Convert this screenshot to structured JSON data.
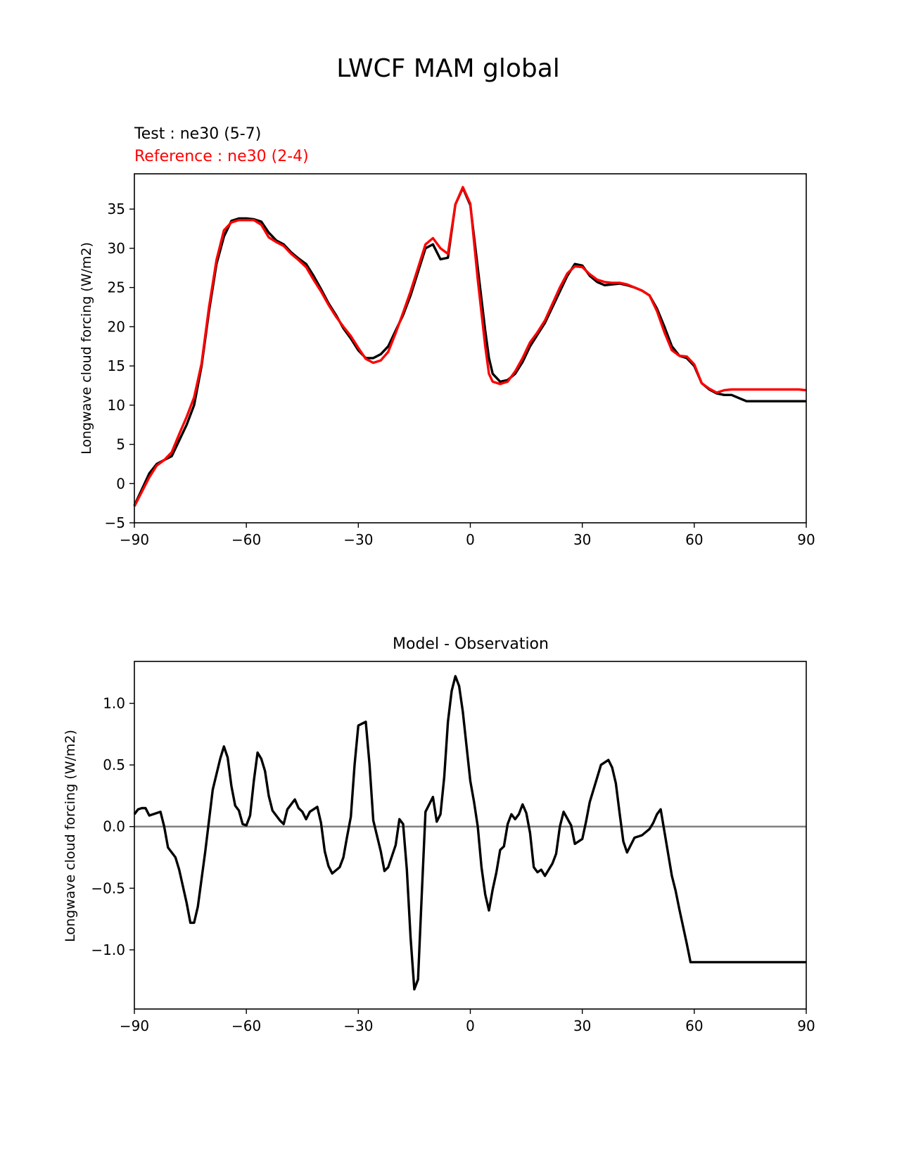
{
  "figure": {
    "title": "LWCF MAM global"
  },
  "colors": {
    "test": "#000000",
    "reference": "#ff0000",
    "zero_line": "#808080"
  },
  "chart_data": [
    {
      "type": "line",
      "test_label": "Test : ne30 (5-7)",
      "reference_label": "Reference : ne30 (2-4)",
      "xlabel": "",
      "ylabel": "Longwave cloud forcing (W/m2)",
      "xlim": [
        -90,
        90
      ],
      "ylim": [
        -5,
        39.5
      ],
      "xticks": [
        -90,
        -60,
        -30,
        0,
        30,
        60,
        90
      ],
      "yticks": [
        -5,
        0,
        5,
        10,
        15,
        20,
        25,
        30,
        35
      ],
      "x": [
        -90,
        -86,
        -84,
        -82,
        -80,
        -78,
        -76,
        -74,
        -72,
        -70,
        -68,
        -66,
        -64,
        -62,
        -60,
        -58,
        -56,
        -54,
        -52,
        -50,
        -48,
        -46,
        -44,
        -42,
        -40,
        -38,
        -36,
        -34,
        -32,
        -30,
        -28,
        -26,
        -24,
        -22,
        -20,
        -18,
        -16,
        -14,
        -12,
        -10,
        -8,
        -6,
        -4,
        -2,
        0,
        2,
        4,
        5,
        6,
        8,
        10,
        12,
        14,
        16,
        18,
        20,
        22,
        24,
        26,
        28,
        30,
        32,
        34,
        36,
        38,
        40,
        42,
        44,
        46,
        48,
        50,
        52,
        54,
        56,
        58,
        60,
        62,
        64,
        66,
        68,
        70,
        72,
        74,
        76,
        78,
        80,
        82,
        84,
        86,
        88,
        90
      ],
      "series": [
        {
          "name": "Test : ne30 (5-7)",
          "values": [
            -2.8,
            1.3,
            2.5,
            3.0,
            3.5,
            5.5,
            7.5,
            10.0,
            15.0,
            22.0,
            28.0,
            31.5,
            33.5,
            33.8,
            33.8,
            33.7,
            33.4,
            32.0,
            31.0,
            30.5,
            29.5,
            28.7,
            28.0,
            26.5,
            24.8,
            23.0,
            21.5,
            19.8,
            18.5,
            17.0,
            16.0,
            16.0,
            16.5,
            17.5,
            19.5,
            21.5,
            24.0,
            27.0,
            30.0,
            30.5,
            28.6,
            28.8,
            35.6,
            37.7,
            35.5,
            27.5,
            19.5,
            16.0,
            14.0,
            13.0,
            13.2,
            14.0,
            15.5,
            17.5,
            19.0,
            20.5,
            22.5,
            24.5,
            26.5,
            28.0,
            27.8,
            26.5,
            25.7,
            25.3,
            25.4,
            25.5,
            25.3,
            25.0,
            24.6,
            24.0,
            22.3,
            20.0,
            17.5,
            16.3,
            16.0,
            15.0,
            12.8,
            12.0,
            11.5,
            11.3,
            11.3,
            10.9,
            10.5,
            10.5,
            10.5,
            10.5,
            10.5,
            10.5,
            10.5,
            10.5,
            10.5
          ]
        },
        {
          "name": "Reference : ne30 (2-4)",
          "values": [
            -2.9,
            0.8,
            2.3,
            3.0,
            4.0,
            6.3,
            8.5,
            11.0,
            15.3,
            22.5,
            28.5,
            32.3,
            33.3,
            33.6,
            33.6,
            33.6,
            33.0,
            31.4,
            30.8,
            30.3,
            29.3,
            28.5,
            27.6,
            26.0,
            24.5,
            22.8,
            21.3,
            20.0,
            18.8,
            17.3,
            15.9,
            15.4,
            15.7,
            16.8,
            19.2,
            21.8,
            24.5,
            27.5,
            30.5,
            31.3,
            30.0,
            29.3,
            35.6,
            37.8,
            35.7,
            26.0,
            17.5,
            14.0,
            13.0,
            12.7,
            13.0,
            14.3,
            16.0,
            18.0,
            19.3,
            20.8,
            22.9,
            25.0,
            26.8,
            27.7,
            27.6,
            26.7,
            26.0,
            25.7,
            25.6,
            25.6,
            25.4,
            25.0,
            24.6,
            24.0,
            22.0,
            19.3,
            17.0,
            16.3,
            16.2,
            15.2,
            12.8,
            12.1,
            11.6,
            11.9,
            12.0,
            12.0,
            12.0,
            12.0,
            12.0,
            12.0,
            12.0,
            12.0,
            12.0,
            12.0,
            11.9
          ]
        }
      ]
    },
    {
      "type": "line",
      "title": "Model - Observation",
      "xlabel": "",
      "ylabel": "Longwave cloud forcing (W/m2)",
      "xlim": [
        -90,
        90
      ],
      "ylim": [
        -1.48,
        1.34
      ],
      "xticks": [
        -90,
        -60,
        -30,
        0,
        30,
        60,
        90
      ],
      "yticks": [
        -1.0,
        -0.5,
        0.0,
        0.5,
        1.0
      ],
      "ytick_labels": [
        "−1.0",
        "−0.5",
        "0.0",
        "0.5",
        "1.0"
      ],
      "zero_line": 0.0,
      "x": [
        -90,
        -89,
        -88,
        -87,
        -86,
        -84,
        -83,
        -82,
        -81,
        -79,
        -78,
        -76,
        -75,
        -74,
        -73,
        -71,
        -70,
        -69,
        -67,
        -66,
        -65,
        -64,
        -63,
        -62,
        -61,
        -60,
        -59,
        -58,
        -57,
        -56,
        -55,
        -54,
        -53,
        -51,
        -50,
        -49,
        -47,
        -46,
        -45,
        -44,
        -43,
        -41,
        -40,
        -39,
        -38,
        -37,
        -35,
        -34,
        -33,
        -32,
        -31,
        -30,
        -28,
        -27,
        -26,
        -24,
        -23,
        -22,
        -20,
        -19,
        -18,
        -17,
        -16,
        -15,
        -14,
        -13,
        -12,
        -10,
        -9,
        -8,
        -7,
        -6,
        -5,
        -4,
        -3,
        -2,
        -1,
        0,
        1,
        2,
        3,
        4,
        5,
        6,
        7,
        8,
        9,
        10,
        11,
        12,
        13,
        14,
        15,
        16,
        17,
        18,
        19,
        20,
        21,
        22,
        23,
        24,
        25,
        27,
        28,
        30,
        31,
        32,
        34,
        35,
        37,
        38,
        39,
        40,
        41,
        42,
        44,
        45,
        46,
        48,
        49,
        50,
        51,
        52,
        54,
        55,
        56,
        58,
        59,
        60,
        62,
        63,
        64,
        65,
        66,
        67,
        68,
        70,
        71,
        72,
        73,
        75,
        76,
        77,
        78,
        79,
        81,
        82,
        83,
        84,
        85,
        87,
        88,
        89,
        90
      ],
      "series": [
        {
          "values": [
            0.1,
            0.14,
            0.15,
            0.15,
            0.09,
            0.11,
            0.12,
            0.0,
            -0.17,
            -0.25,
            -0.35,
            -0.62,
            -0.78,
            -0.78,
            -0.65,
            -0.2,
            0.05,
            0.3,
            0.55,
            0.65,
            0.56,
            0.33,
            0.17,
            0.13,
            0.02,
            0.01,
            0.09,
            0.37,
            0.6,
            0.55,
            0.45,
            0.25,
            0.13,
            0.05,
            0.02,
            0.14,
            0.22,
            0.15,
            0.12,
            0.06,
            0.12,
            0.16,
            0.03,
            -0.2,
            -0.32,
            -0.38,
            -0.33,
            -0.25,
            -0.08,
            0.08,
            0.5,
            0.82,
            0.85,
            0.5,
            0.05,
            -0.2,
            -0.36,
            -0.33,
            -0.15,
            0.06,
            0.02,
            -0.35,
            -0.9,
            -1.32,
            -1.24,
            -0.55,
            0.12,
            0.24,
            0.04,
            0.1,
            0.4,
            0.85,
            1.1,
            1.22,
            1.14,
            0.93,
            0.65,
            0.37,
            0.2,
            0.0,
            -0.33,
            -0.55,
            -0.68,
            -0.51,
            -0.37,
            -0.19,
            -0.16,
            0.02,
            0.1,
            0.06,
            0.1,
            0.18,
            0.11,
            -0.05,
            -0.33,
            -0.37,
            -0.35,
            -0.4,
            -0.35,
            -0.3,
            -0.22,
            0.0,
            0.12,
            0.01,
            -0.14,
            -0.1,
            0.04,
            0.2,
            0.4,
            0.5,
            0.54,
            0.48,
            0.35,
            0.11,
            -0.12,
            -0.21,
            -0.09,
            -0.08,
            -0.07,
            -0.02,
            0.03,
            0.1,
            0.14,
            -0.04,
            -0.4,
            -0.52,
            -0.67,
            -0.95,
            -1.1,
            -1.1,
            -1.1,
            -1.1,
            -1.1,
            -1.1,
            -1.1,
            -1.1,
            -1.1,
            -1.1,
            -1.1,
            -1.1,
            -1.1,
            -1.1,
            -1.1,
            -1.1,
            -1.1,
            -1.1,
            -1.1,
            -1.1,
            -1.1,
            -1.1,
            -1.1,
            -1.1,
            -1.1,
            -1.1,
            -1.1
          ]
        }
      ]
    }
  ]
}
